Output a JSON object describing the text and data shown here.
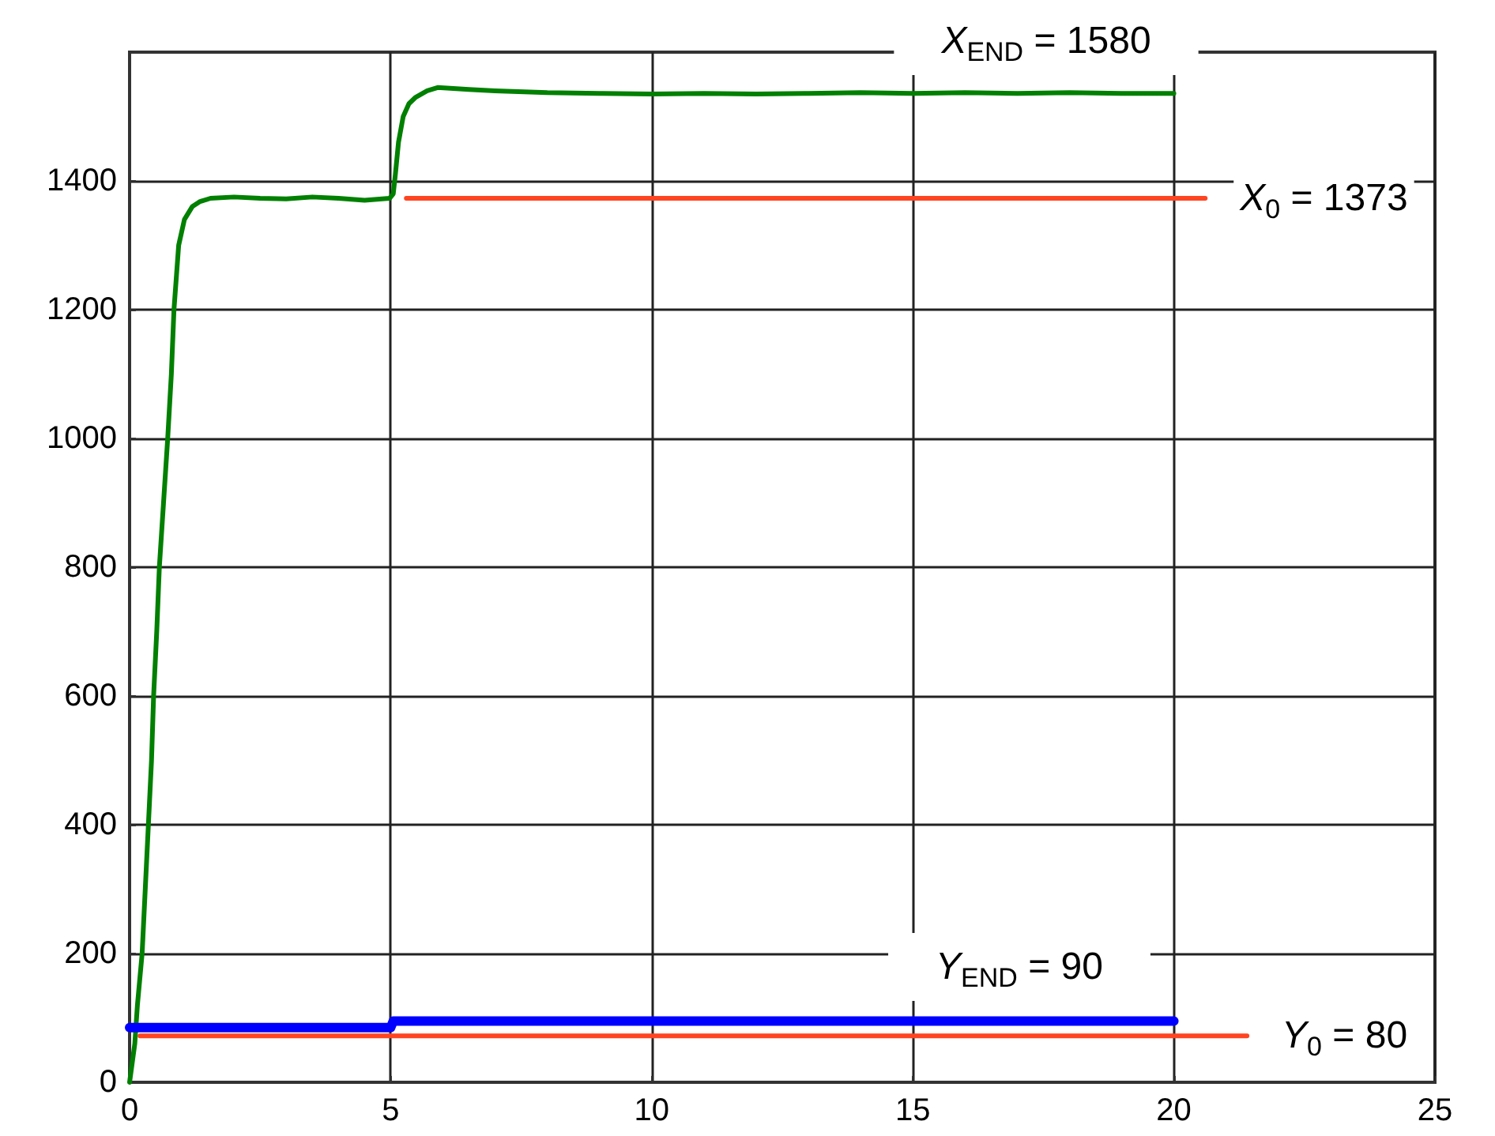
{
  "chart_data": {
    "type": "line",
    "xlim": [
      0,
      25
    ],
    "xticks": [
      0,
      5,
      10,
      15,
      20,
      25
    ],
    "ylim": [
      0,
      1600
    ],
    "yticks": [
      0,
      200,
      400,
      600,
      800,
      1000,
      1200,
      1400
    ],
    "grid": true,
    "legend": false,
    "marker": "none",
    "line_style": "solid",
    "series": [
      {
        "color": "#008000",
        "x": [
          0,
          0.1,
          0.15,
          0.24,
          0.3,
          0.36,
          0.42,
          0.46,
          0.52,
          0.57,
          0.65,
          0.73,
          0.8,
          0.85,
          0.94,
          1.05,
          1.2,
          1.35,
          1.55,
          2.0,
          2.5,
          3.0,
          3.5,
          4.0,
          4.5,
          4.98,
          5.05,
          5.09,
          5.15,
          5.24,
          5.35,
          5.48,
          5.7,
          5.9,
          6.5,
          7.0,
          8.0,
          9.0,
          10.0,
          11.0,
          12.0,
          13.0,
          14.0,
          15.0,
          16.0,
          17.0,
          18.0,
          19.0,
          20.0
        ],
        "values": [
          0,
          60,
          120,
          200,
          300,
          400,
          500,
          600,
          700,
          800,
          900,
          1000,
          1100,
          1200,
          1300,
          1340,
          1360,
          1368,
          1373,
          1375,
          1373,
          1372,
          1375,
          1373,
          1370,
          1373,
          1380,
          1410,
          1460,
          1500,
          1520,
          1530,
          1540,
          1545,
          1542,
          1540,
          1537,
          1536,
          1535,
          1536,
          1535,
          1536,
          1537,
          1536,
          1537,
          1536,
          1537,
          1536,
          1536
        ]
      },
      {
        "color": "#0000ff",
        "x": [
          0,
          5.0,
          5.05,
          20
        ],
        "values": [
          85,
          85,
          95,
          95
        ]
      },
      {
        "name": "X$_{0}$ = 1373",
        "color": "#ff4422",
        "x": [
          5.3,
          20.6
        ],
        "values": [
          1373,
          1373
        ]
      },
      {
        "name": "Y$_{0}$ = 80",
        "color": "#ff4422",
        "x": [
          0.2,
          21.4
        ],
        "values": [
          72,
          72
        ]
      }
    ],
    "annotations": [
      "X$_{END}$ = 1580",
      "Y$_{END}$ = 90"
    ]
  }
}
